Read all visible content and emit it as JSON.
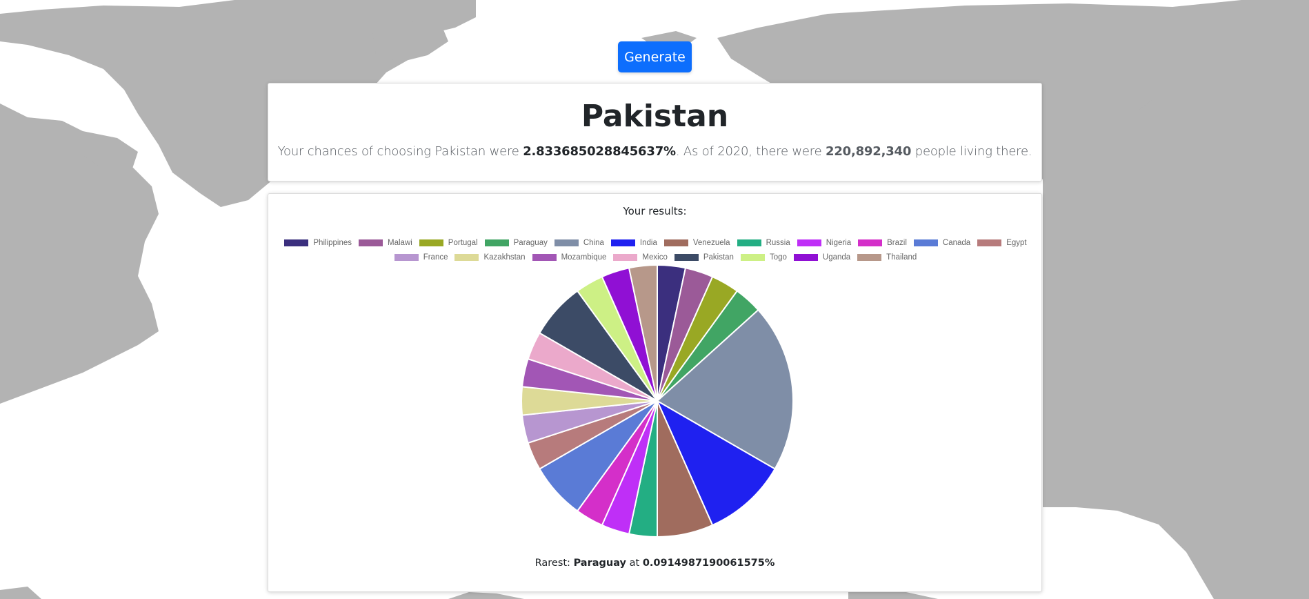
{
  "generate_button": {
    "label": "Generate"
  },
  "selection": {
    "country": "Pakistan",
    "chance_prefix": "Your chances of choosing ",
    "chance_mid": " were ",
    "chance_value": "2.833685028845637%",
    "year_text": ". As of 2020, there were ",
    "population": "220,892,340",
    "suffix": " people living there."
  },
  "results": {
    "label": "Your results:",
    "rarest_prefix": "Rarest: ",
    "rarest_country": "Paraguay",
    "rarest_mid": " at ",
    "rarest_value": "0.0914987190061575%"
  },
  "chart_data": {
    "type": "pie",
    "legend_position": "top",
    "labels": [
      "Philippines",
      "Malawi",
      "Portugal",
      "Paraguay",
      "China",
      "India",
      "Venezuela",
      "Russia",
      "Nigeria",
      "Brazil",
      "Canada",
      "Egypt",
      "France",
      "Kazakhstan",
      "Mozambique",
      "Mexico",
      "Pakistan",
      "Togo",
      "Uganda",
      "Thailand"
    ],
    "values": [
      1,
      1,
      1,
      1,
      6,
      3,
      2,
      1,
      1,
      1,
      2,
      1,
      1,
      1,
      1,
      1,
      2,
      1,
      1,
      1
    ],
    "colors": [
      "#3b2f7e",
      "#9b5a98",
      "#99a824",
      "#41a564",
      "#7f8ea7",
      "#1f21f0",
      "#a06c5e",
      "#23ae83",
      "#bf2ff7",
      "#d42fc9",
      "#5a7bd6",
      "#b77b7c",
      "#b796d0",
      "#ddda97",
      "#a256b5",
      "#eba9cb",
      "#3c4b66",
      "#cdf085",
      "#9010d4",
      "#b7988a"
    ]
  }
}
